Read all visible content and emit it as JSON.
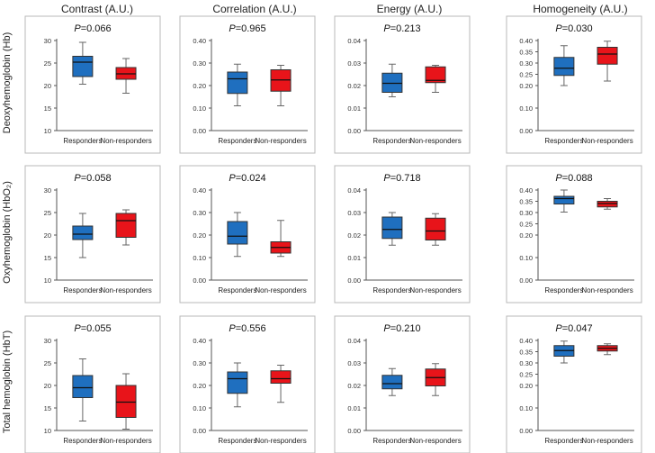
{
  "chart_data": {
    "type": "boxplot",
    "column_titles": [
      "Contrast (A.U.)",
      "Correlation (A.U.)",
      "Energy (A.U.)",
      "Homogeneity (A.U.)"
    ],
    "row_labels": [
      "Deoxyhemoglobin (Hb)",
      "Oxyhemoglobin (HbO₂)",
      "Total hemoglobin (HbT)"
    ],
    "categories": [
      "Responders",
      "Non-responders"
    ],
    "colors": {
      "responders": "#1f6fbf",
      "non_responders": "#e8141a"
    },
    "p_prefix": "P",
    "panels": [
      {
        "row": 0,
        "col": 0,
        "p_value": "=0.066",
        "yrange": [
          10,
          30
        ],
        "ticks": [
          "10",
          "15",
          "20",
          "25",
          "30"
        ],
        "boxes": [
          {
            "min": 20.3,
            "q1": 22.0,
            "median": 25.2,
            "q3": 26.5,
            "max": 29.6
          },
          {
            "min": 18.3,
            "q1": 21.4,
            "median": 22.6,
            "q3": 24.0,
            "max": 26.0
          }
        ]
      },
      {
        "row": 0,
        "col": 1,
        "p_value": "=0.965",
        "yrange": [
          0.0,
          0.4
        ],
        "ticks": [
          "0.00",
          "0.10",
          "0.20",
          "0.30",
          "0.40"
        ],
        "boxes": [
          {
            "min": 0.11,
            "q1": 0.165,
            "median": 0.23,
            "q3": 0.26,
            "max": 0.295
          },
          {
            "min": 0.11,
            "q1": 0.175,
            "median": 0.225,
            "q3": 0.27,
            "max": 0.29
          }
        ]
      },
      {
        "row": 0,
        "col": 2,
        "p_value": "=0.213",
        "yrange": [
          0.0,
          0.04
        ],
        "ticks": [
          "0.00",
          "0.01",
          "0.02",
          "0.03",
          "0.04"
        ],
        "boxes": [
          {
            "min": 0.015,
            "q1": 0.017,
            "median": 0.021,
            "q3": 0.0255,
            "max": 0.0295
          },
          {
            "min": 0.017,
            "q1": 0.0213,
            "median": 0.0223,
            "q3": 0.0283,
            "max": 0.029
          }
        ]
      },
      {
        "row": 0,
        "col": 3,
        "p_value": "=0.030",
        "yrange": [
          0.0,
          0.4
        ],
        "ticks": [
          "0.00",
          "0.10",
          "0.20",
          "0.25",
          "0.30",
          "0.35",
          "0.40"
        ],
        "tick_values": [
          0.0,
          0.1,
          0.2,
          0.25,
          0.3,
          0.35,
          0.4
        ],
        "boxes": [
          {
            "min": 0.2,
            "q1": 0.245,
            "median": 0.277,
            "q3": 0.325,
            "max": 0.377
          },
          {
            "min": 0.22,
            "q1": 0.295,
            "median": 0.34,
            "q3": 0.37,
            "max": 0.397
          }
        ]
      },
      {
        "row": 1,
        "col": 0,
        "p_value": "=0.058",
        "yrange": [
          10,
          30
        ],
        "ticks": [
          "10",
          "15",
          "20",
          "25",
          "30"
        ],
        "boxes": [
          {
            "min": 15.0,
            "q1": 19.0,
            "median": 20.2,
            "q3": 22.0,
            "max": 24.8
          },
          {
            "min": 17.8,
            "q1": 19.5,
            "median": 23.2,
            "q3": 24.8,
            "max": 25.6
          }
        ]
      },
      {
        "row": 1,
        "col": 1,
        "p_value": "=0.024",
        "yrange": [
          0.0,
          0.4
        ],
        "ticks": [
          "0.00",
          "0.10",
          "0.20",
          "0.30",
          "0.40"
        ],
        "boxes": [
          {
            "min": 0.105,
            "q1": 0.16,
            "median": 0.195,
            "q3": 0.26,
            "max": 0.3
          },
          {
            "min": 0.105,
            "q1": 0.12,
            "median": 0.145,
            "q3": 0.17,
            "max": 0.265
          }
        ]
      },
      {
        "row": 1,
        "col": 2,
        "p_value": "=0.718",
        "yrange": [
          0.0,
          0.04
        ],
        "ticks": [
          "0.00",
          "0.01",
          "0.02",
          "0.03",
          "0.04"
        ],
        "boxes": [
          {
            "min": 0.0155,
            "q1": 0.0185,
            "median": 0.0225,
            "q3": 0.028,
            "max": 0.03
          },
          {
            "min": 0.0155,
            "q1": 0.0178,
            "median": 0.0218,
            "q3": 0.0275,
            "max": 0.0295
          }
        ]
      },
      {
        "row": 1,
        "col": 3,
        "p_value": "=0.088",
        "yrange": [
          0.0,
          0.4
        ],
        "ticks": [
          "0.00",
          "0.10",
          "0.20",
          "0.25",
          "0.30",
          "0.35",
          "0.40"
        ],
        "tick_values": [
          0.0,
          0.1,
          0.2,
          0.25,
          0.3,
          0.35,
          0.4
        ],
        "boxes": [
          {
            "min": 0.302,
            "q1": 0.338,
            "median": 0.362,
            "q3": 0.372,
            "max": 0.4
          },
          {
            "min": 0.315,
            "q1": 0.325,
            "median": 0.34,
            "q3": 0.35,
            "max": 0.362
          }
        ]
      },
      {
        "row": 2,
        "col": 0,
        "p_value": "=0.055",
        "yrange": [
          10,
          30
        ],
        "ticks": [
          "10",
          "15",
          "20",
          "25",
          "30"
        ],
        "boxes": [
          {
            "min": 12.1,
            "q1": 17.3,
            "median": 19.5,
            "q3": 22.2,
            "max": 25.9
          },
          {
            "min": 10.3,
            "q1": 12.9,
            "median": 16.3,
            "q3": 20.0,
            "max": 22.6
          }
        ]
      },
      {
        "row": 2,
        "col": 1,
        "p_value": "=0.556",
        "yrange": [
          0.0,
          0.4
        ],
        "ticks": [
          "0.00",
          "0.10",
          "0.20",
          "0.30",
          "0.40"
        ],
        "boxes": [
          {
            "min": 0.105,
            "q1": 0.165,
            "median": 0.23,
            "q3": 0.26,
            "max": 0.3
          },
          {
            "min": 0.125,
            "q1": 0.21,
            "median": 0.23,
            "q3": 0.265,
            "max": 0.29
          }
        ]
      },
      {
        "row": 2,
        "col": 2,
        "p_value": "=0.210",
        "yrange": [
          0.0,
          0.04
        ],
        "ticks": [
          "0.00",
          "0.01",
          "0.02",
          "0.03",
          "0.04"
        ],
        "boxes": [
          {
            "min": 0.0155,
            "q1": 0.0185,
            "median": 0.0208,
            "q3": 0.0245,
            "max": 0.0275
          },
          {
            "min": 0.0155,
            "q1": 0.0198,
            "median": 0.0235,
            "q3": 0.0273,
            "max": 0.0297
          }
        ]
      },
      {
        "row": 2,
        "col": 3,
        "p_value": "=0.047",
        "yrange": [
          0.0,
          0.4
        ],
        "ticks": [
          "0.00",
          "0.10",
          "0.20",
          "0.25",
          "0.30",
          "0.35",
          "0.40"
        ],
        "tick_values": [
          0.0,
          0.1,
          0.2,
          0.25,
          0.3,
          0.35,
          0.4
        ],
        "boxes": [
          {
            "min": 0.3,
            "q1": 0.33,
            "median": 0.355,
            "q3": 0.377,
            "max": 0.397
          },
          {
            "min": 0.337,
            "q1": 0.353,
            "median": 0.365,
            "q3": 0.377,
            "max": 0.385
          }
        ]
      }
    ]
  }
}
